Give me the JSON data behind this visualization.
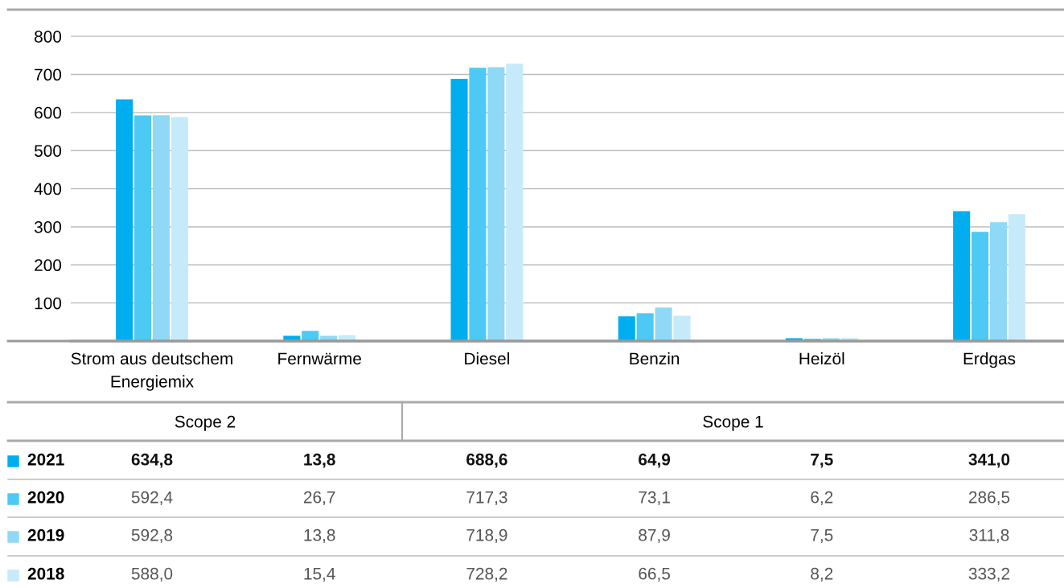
{
  "chart_data": {
    "type": "bar",
    "categories": [
      "Strom aus deutschem\nEnergiemix",
      "Fernwärme",
      "Diesel",
      "Benzin",
      "Heizöl",
      "Erdgas"
    ],
    "series": [
      {
        "name": "2021",
        "color": "#00aeef",
        "values": [
          634.8,
          13.8,
          688.6,
          64.9,
          7.5,
          341.0
        ],
        "value_labels": [
          "634,8",
          "13,8",
          "688,6",
          "64,9",
          "7,5",
          "341,0"
        ]
      },
      {
        "name": "2020",
        "color": "#4cc9f5",
        "values": [
          592.4,
          26.7,
          717.3,
          73.1,
          6.2,
          286.5
        ],
        "value_labels": [
          "592,4",
          "26,7",
          "717,3",
          "73,1",
          "6,2",
          "286,5"
        ]
      },
      {
        "name": "2019",
        "color": "#8fd9f7",
        "values": [
          592.8,
          13.8,
          718.9,
          87.9,
          7.5,
          311.8
        ],
        "value_labels": [
          "592,8",
          "13,8",
          "718,9",
          "87,9",
          "7,5",
          "311,8"
        ]
      },
      {
        "name": "2018",
        "color": "#c6eaf9",
        "values": [
          588.0,
          15.4,
          728.2,
          66.5,
          8.2,
          333.2
        ],
        "value_labels": [
          "588,0",
          "15,4",
          "728,2",
          "66,5",
          "8,2",
          "333,2"
        ]
      }
    ],
    "ylim": [
      0,
      870
    ],
    "yticks": [
      100,
      200,
      300,
      400,
      500,
      600,
      700,
      800
    ],
    "grid": "y",
    "legend": "bottom",
    "annotations": [
      "Scope 2",
      "Scope 1"
    ]
  }
}
